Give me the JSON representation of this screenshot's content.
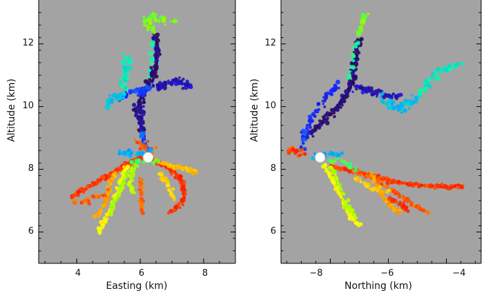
{
  "chart_data": [
    {
      "type": "scatter",
      "panel": "left",
      "title": "",
      "xlabel": "Easting (km)",
      "ylabel": "Altitude (km)",
      "xlim": [
        2.8,
        9.0
      ],
      "ylim": [
        5.0,
        13.4
      ],
      "xticks": [
        4,
        6,
        8
      ],
      "xticklabels": [
        "4",
        "6",
        "8"
      ],
      "yticks": [
        6,
        8,
        10,
        12
      ],
      "yticklabels": [
        "6",
        "8",
        "10",
        "12"
      ],
      "grid": false,
      "background": "#a3a3a3",
      "color_scale": [
        "#2a0a5a",
        "#1a1aff",
        "#00aaff",
        "#00ffaa",
        "#88ff00",
        "#ffff00",
        "#ffaa00",
        "#ff1a00"
      ],
      "initiation_point": {
        "x": 6.25,
        "y": 8.38
      },
      "segments": [
        {
          "c": 0.02,
          "n": 22,
          "j": 0.09,
          "pts": [
            [
              6.1,
              9.1
            ],
            [
              5.95,
              9.8
            ],
            [
              6.05,
              10.3
            ],
            [
              6.3,
              10.8
            ],
            [
              6.5,
              11.3
            ],
            [
              6.55,
              11.8
            ],
            [
              6.45,
              12.3
            ]
          ]
        },
        {
          "c": 0.08,
          "n": 18,
          "j": 0.1,
          "pts": [
            [
              6.4,
              10.6
            ],
            [
              6.8,
              10.7
            ],
            [
              7.2,
              10.8
            ],
            [
              7.6,
              10.65
            ]
          ]
        },
        {
          "c": 0.18,
          "n": 14,
          "j": 0.1,
          "pts": [
            [
              6.3,
              10.6
            ],
            [
              6.0,
              10.5
            ],
            [
              5.7,
              10.45
            ],
            [
              5.4,
              10.3
            ]
          ]
        },
        {
          "c": 0.06,
          "n": 12,
          "j": 0.08,
          "pts": [
            [
              6.1,
              9.0
            ],
            [
              6.0,
              9.5
            ],
            [
              6.1,
              10.0
            ]
          ]
        },
        {
          "c": 0.2,
          "n": 12,
          "j": 0.07,
          "pts": [
            [
              6.2,
              8.6
            ],
            [
              6.1,
              8.9
            ],
            [
              6.05,
              9.2
            ]
          ]
        },
        {
          "c": 0.32,
          "n": 16,
          "j": 0.12,
          "pts": [
            [
              5.4,
              10.4
            ],
            [
              5.15,
              10.3
            ],
            [
              4.95,
              10.0
            ]
          ]
        },
        {
          "c": 0.4,
          "n": 14,
          "j": 0.13,
          "pts": [
            [
              5.5,
              10.5
            ],
            [
              5.55,
              10.9
            ],
            [
              5.6,
              11.3
            ],
            [
              5.5,
              11.55
            ]
          ]
        },
        {
          "c": 0.45,
          "n": 8,
          "j": 0.07,
          "pts": [
            [
              6.3,
              11.0
            ],
            [
              6.35,
              11.6
            ],
            [
              6.4,
              12.1
            ]
          ]
        },
        {
          "c": 0.55,
          "n": 12,
          "j": 0.12,
          "pts": [
            [
              6.4,
              12.3
            ],
            [
              6.2,
              12.7
            ],
            [
              6.5,
              12.9
            ],
            [
              7.0,
              12.7
            ]
          ]
        },
        {
          "c": 0.95,
          "n": 10,
          "j": 0.11,
          "pts": [
            [
              5.9,
              8.9
            ],
            [
              6.15,
              8.75
            ],
            [
              6.4,
              8.6
            ]
          ]
        },
        {
          "c": 0.97,
          "n": 24,
          "j": 0.05,
          "pts": [
            [
              6.1,
              8.4
            ],
            [
              5.6,
              8.15
            ],
            [
              5.2,
              7.9
            ],
            [
              4.8,
              7.7
            ],
            [
              4.3,
              7.4
            ],
            [
              3.8,
              7.1
            ]
          ]
        },
        {
          "c": 0.85,
          "n": 16,
          "j": 0.06,
          "pts": [
            [
              5.2,
              7.9
            ],
            [
              5.0,
              7.4
            ],
            [
              4.9,
              6.9
            ],
            [
              4.6,
              6.5
            ]
          ]
        },
        {
          "c": 0.72,
          "n": 16,
          "j": 0.06,
          "pts": [
            [
              5.6,
              8.1
            ],
            [
              5.4,
              7.6
            ],
            [
              5.2,
              7.0
            ],
            [
              4.9,
              6.4
            ],
            [
              4.7,
              6.0
            ]
          ]
        },
        {
          "c": 0.6,
          "n": 14,
          "j": 0.06,
          "pts": [
            [
              6.0,
              8.3
            ],
            [
              5.6,
              7.8
            ],
            [
              5.3,
              7.2
            ],
            [
              5.1,
              6.6
            ]
          ]
        },
        {
          "c": 0.62,
          "n": 12,
          "j": 0.06,
          "pts": [
            [
              5.8,
              8.05
            ],
            [
              5.7,
              7.6
            ],
            [
              5.75,
              7.2
            ]
          ]
        },
        {
          "c": 0.98,
          "n": 18,
          "j": 0.05,
          "pts": [
            [
              6.4,
              8.3
            ],
            [
              6.8,
              8.1
            ],
            [
              7.2,
              7.8
            ],
            [
              7.4,
              7.3
            ],
            [
              7.3,
              6.9
            ],
            [
              6.9,
              6.6
            ]
          ]
        },
        {
          "c": 0.82,
          "n": 16,
          "j": 0.05,
          "pts": [
            [
              6.5,
              8.3
            ],
            [
              7.0,
              8.1
            ],
            [
              7.5,
              8.0
            ],
            [
              7.8,
              7.9
            ]
          ]
        },
        {
          "c": 0.92,
          "n": 14,
          "j": 0.06,
          "pts": [
            [
              6.0,
              7.7
            ],
            [
              6.0,
              7.2
            ],
            [
              6.05,
              6.6
            ]
          ]
        },
        {
          "c": 0.78,
          "n": 12,
          "j": 0.06,
          "pts": [
            [
              6.6,
              7.9
            ],
            [
              6.9,
              7.5
            ],
            [
              7.05,
              7.0
            ]
          ]
        },
        {
          "c": 0.93,
          "n": 10,
          "j": 0.07,
          "pts": [
            [
              5.0,
              7.3
            ],
            [
              4.4,
              7.0
            ],
            [
              3.9,
              6.9
            ]
          ]
        },
        {
          "c": 0.3,
          "n": 10,
          "j": 0.08,
          "pts": [
            [
              5.3,
              8.5
            ],
            [
              5.6,
              8.55
            ],
            [
              6.0,
              8.5
            ],
            [
              6.4,
              8.55
            ]
          ]
        },
        {
          "c": 0.5,
          "n": 8,
          "j": 0.1,
          "pts": [
            [
              5.7,
              8.25
            ],
            [
              6.0,
              8.3
            ],
            [
              6.5,
              8.25
            ]
          ]
        }
      ]
    },
    {
      "type": "scatter",
      "panel": "right",
      "title": "",
      "xlabel": "Northing (km)",
      "ylabel": "Altitude (km)",
      "xlim": [
        -9.7,
        -2.8
      ],
      "ylim": [
        5.0,
        13.4
      ],
      "xticks": [
        -8,
        -6,
        -4
      ],
      "xticklabels": [
        "−8",
        "−6",
        "−4"
      ],
      "yticks": [
        6,
        8,
        10,
        12
      ],
      "yticklabels": [
        "6",
        "8",
        "10",
        "12"
      ],
      "grid": false,
      "background": "#a3a3a3",
      "color_scale": [
        "#2a0a5a",
        "#1a1aff",
        "#00aaff",
        "#00ffaa",
        "#88ff00",
        "#ffff00",
        "#ffaa00",
        "#ff1a00"
      ],
      "initiation_point": {
        "x": -8.35,
        "y": 8.38
      },
      "segments": [
        {
          "c": 0.02,
          "n": 22,
          "j": 0.09,
          "pts": [
            [
              -8.7,
              9.0
            ],
            [
              -8.2,
              9.6
            ],
            [
              -7.7,
              10.0
            ],
            [
              -7.4,
              10.5
            ],
            [
              -7.2,
              11.0
            ],
            [
              -7.1,
              11.6
            ],
            [
              -7.0,
              12.2
            ]
          ]
        },
        {
          "c": 0.08,
          "n": 18,
          "j": 0.1,
          "pts": [
            [
              -7.2,
              10.6
            ],
            [
              -6.7,
              10.5
            ],
            [
              -6.2,
              10.4
            ],
            [
              -5.6,
              10.3
            ]
          ]
        },
        {
          "c": 0.14,
          "n": 16,
          "j": 0.08,
          "pts": [
            [
              -9.0,
              8.7
            ],
            [
              -8.8,
              9.3
            ],
            [
              -8.5,
              9.8
            ],
            [
              -8.1,
              10.4
            ],
            [
              -7.7,
              10.7
            ]
          ]
        },
        {
          "c": 0.2,
          "n": 8,
          "j": 0.07,
          "pts": [
            [
              -8.9,
              8.9
            ],
            [
              -8.95,
              9.3
            ]
          ]
        },
        {
          "c": 0.32,
          "n": 16,
          "j": 0.12,
          "pts": [
            [
              -6.2,
              10.3
            ],
            [
              -5.9,
              10.0
            ],
            [
              -5.5,
              10.0
            ],
            [
              -5.0,
              10.3
            ]
          ]
        },
        {
          "c": 0.4,
          "n": 14,
          "j": 0.13,
          "pts": [
            [
              -5.0,
              10.3
            ],
            [
              -4.6,
              10.8
            ],
            [
              -4.1,
              11.2
            ],
            [
              -3.5,
              11.35
            ]
          ]
        },
        {
          "c": 0.45,
          "n": 8,
          "j": 0.07,
          "pts": [
            [
              -7.4,
              10.8
            ],
            [
              -7.2,
              11.5
            ],
            [
              -7.1,
              12.1
            ]
          ]
        },
        {
          "c": 0.55,
          "n": 12,
          "j": 0.12,
          "pts": [
            [
              -7.0,
              12.3
            ],
            [
              -6.9,
              12.7
            ],
            [
              -6.8,
              12.95
            ]
          ]
        },
        {
          "c": 0.97,
          "n": 10,
          "j": 0.09,
          "pts": [
            [
              -9.5,
              8.55
            ],
            [
              -9.2,
              8.55
            ],
            [
              -8.9,
              8.45
            ]
          ]
        },
        {
          "c": 0.97,
          "n": 26,
          "j": 0.05,
          "pts": [
            [
              -8.0,
              8.1
            ],
            [
              -7.4,
              8.0
            ],
            [
              -6.6,
              7.8
            ],
            [
              -5.8,
              7.6
            ],
            [
              -5.0,
              7.5
            ],
            [
              -4.2,
              7.45
            ],
            [
              -3.4,
              7.45
            ]
          ]
        },
        {
          "c": 0.94,
          "n": 18,
          "j": 0.05,
          "pts": [
            [
              -7.2,
              8.0
            ],
            [
              -6.5,
              7.7
            ],
            [
              -5.8,
              7.3
            ],
            [
              -5.2,
              6.9
            ],
            [
              -4.6,
              6.6
            ]
          ]
        },
        {
          "c": 0.72,
          "n": 16,
          "j": 0.06,
          "pts": [
            [
              -8.2,
              8.2
            ],
            [
              -7.9,
              7.6
            ],
            [
              -7.6,
              7.0
            ],
            [
              -7.3,
              6.5
            ],
            [
              -7.0,
              6.2
            ]
          ]
        },
        {
          "c": 0.62,
          "n": 14,
          "j": 0.06,
          "pts": [
            [
              -8.0,
              8.1
            ],
            [
              -7.7,
              7.5
            ],
            [
              -7.4,
              6.8
            ],
            [
              -7.1,
              6.4
            ]
          ]
        },
        {
          "c": 0.86,
          "n": 14,
          "j": 0.05,
          "pts": [
            [
              -6.6,
              7.9
            ],
            [
              -6.3,
              7.3
            ],
            [
              -5.9,
              6.8
            ],
            [
              -5.6,
              6.6
            ]
          ]
        },
        {
          "c": 0.8,
          "n": 12,
          "j": 0.06,
          "pts": [
            [
              -7.2,
              7.8
            ],
            [
              -6.6,
              7.4
            ],
            [
              -6.0,
              7.3
            ]
          ]
        },
        {
          "c": 0.99,
          "n": 10,
          "j": 0.06,
          "pts": [
            [
              -6.0,
              7.1
            ],
            [
              -5.6,
              6.9
            ],
            [
              -5.3,
              6.7
            ]
          ]
        },
        {
          "c": 0.3,
          "n": 10,
          "j": 0.08,
          "pts": [
            [
              -8.6,
              8.45
            ],
            [
              -8.1,
              8.5
            ],
            [
              -7.6,
              8.4
            ]
          ]
        },
        {
          "c": 0.5,
          "n": 8,
          "j": 0.1,
          "pts": [
            [
              -8.0,
              8.3
            ],
            [
              -7.5,
              8.2
            ],
            [
              -7.1,
              8.0
            ]
          ]
        }
      ]
    }
  ]
}
